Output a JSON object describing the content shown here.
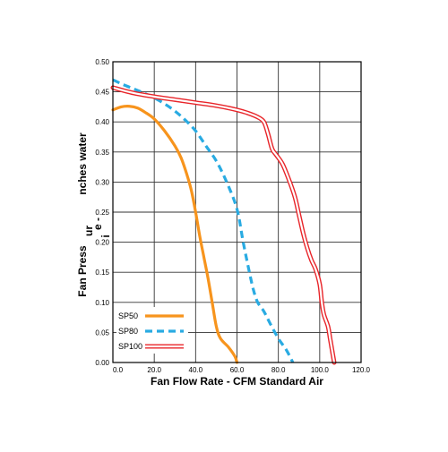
{
  "chart_data": {
    "type": "line",
    "title": "",
    "xlabel": "Fan Flow Rate - CFM Standard Air",
    "ylabel_lines": [
      "Fan Press",
      "ur",
      "e -",
      "i",
      "nches water"
    ],
    "xlim": [
      0,
      120
    ],
    "ylim": [
      0,
      0.5
    ],
    "x_ticks": [
      "0.0",
      "20.0",
      "40.0",
      "60.0",
      "80.0",
      "100.0",
      "120.0"
    ],
    "y_ticks": [
      "0.00",
      "0.05",
      "0.10",
      "0.15",
      "0.20",
      "0.25",
      "0.30",
      "0.35",
      "0.40",
      "0.45",
      "0.50"
    ],
    "grid": true,
    "legend_position": "bottom-left",
    "series": [
      {
        "name": "SP50",
        "style": "solid",
        "color": "#f7941d",
        "points": [
          [
            0,
            0.42
          ],
          [
            4,
            0.425
          ],
          [
            8,
            0.426
          ],
          [
            12,
            0.423
          ],
          [
            16,
            0.415
          ],
          [
            20,
            0.405
          ],
          [
            25,
            0.385
          ],
          [
            30,
            0.36
          ],
          [
            33,
            0.34
          ],
          [
            36,
            0.31
          ],
          [
            38,
            0.285
          ],
          [
            40,
            0.25
          ],
          [
            42,
            0.21
          ],
          [
            44,
            0.175
          ],
          [
            46,
            0.14
          ],
          [
            48,
            0.1
          ],
          [
            50,
            0.06
          ],
          [
            52,
            0.04
          ],
          [
            56,
            0.025
          ],
          [
            59,
            0.01
          ],
          [
            60,
            0
          ]
        ]
      },
      {
        "name": "SP80",
        "style": "dashed",
        "color": "#29abe2",
        "points": [
          [
            0,
            0.47
          ],
          [
            5,
            0.462
          ],
          [
            10,
            0.455
          ],
          [
            15,
            0.448
          ],
          [
            20,
            0.44
          ],
          [
            25,
            0.43
          ],
          [
            30,
            0.418
          ],
          [
            35,
            0.403
          ],
          [
            40,
            0.385
          ],
          [
            45,
            0.36
          ],
          [
            50,
            0.335
          ],
          [
            55,
            0.3
          ],
          [
            60,
            0.255
          ],
          [
            63,
            0.2
          ],
          [
            66,
            0.15
          ],
          [
            68,
            0.12
          ],
          [
            70,
            0.1
          ],
          [
            73,
            0.085
          ],
          [
            76,
            0.065
          ],
          [
            80,
            0.04
          ],
          [
            84,
            0.02
          ],
          [
            87,
            0
          ]
        ]
      },
      {
        "name": "SP100",
        "style": "double",
        "color": "#e8252a",
        "points": [
          [
            0,
            0.457
          ],
          [
            10,
            0.448
          ],
          [
            20,
            0.442
          ],
          [
            30,
            0.437
          ],
          [
            40,
            0.432
          ],
          [
            50,
            0.427
          ],
          [
            60,
            0.42
          ],
          [
            65,
            0.415
          ],
          [
            70,
            0.408
          ],
          [
            73,
            0.4
          ],
          [
            75,
            0.38
          ],
          [
            77,
            0.355
          ],
          [
            79,
            0.345
          ],
          [
            82,
            0.33
          ],
          [
            85,
            0.305
          ],
          [
            88,
            0.275
          ],
          [
            90,
            0.245
          ],
          [
            92,
            0.215
          ],
          [
            94,
            0.19
          ],
          [
            96,
            0.17
          ],
          [
            98,
            0.155
          ],
          [
            100,
            0.13
          ],
          [
            101,
            0.1
          ],
          [
            102,
            0.08
          ],
          [
            104,
            0.06
          ],
          [
            105,
            0.04
          ],
          [
            106,
            0.02
          ],
          [
            107,
            0
          ]
        ]
      }
    ]
  }
}
